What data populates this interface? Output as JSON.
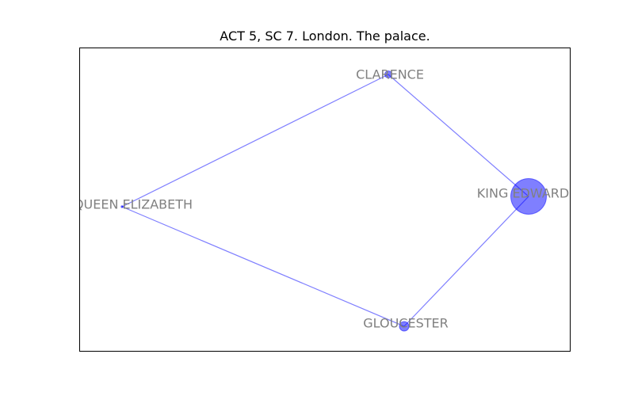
{
  "title": "ACT 5, SC 7. London. The palace.",
  "colors": {
    "node_fill": "#0000ff",
    "edge": "#0000ff",
    "label": "#808080",
    "frame": "#000000"
  },
  "graph": {
    "nodes": [
      {
        "id": "clarence",
        "label": "CLARENCE",
        "weight": 1
      },
      {
        "id": "queen_elizabeth",
        "label": "QUEEN ELIZABETH",
        "weight": 0
      },
      {
        "id": "king_edward",
        "label": "KING EDWARD",
        "weight": 20
      },
      {
        "id": "gloucester",
        "label": "GLOUCESTER",
        "weight": 2
      }
    ],
    "edges": [
      {
        "source": "clarence",
        "target": "king_edward"
      },
      {
        "source": "clarence",
        "target": "queen_elizabeth"
      },
      {
        "source": "queen_elizabeth",
        "target": "gloucester"
      },
      {
        "source": "gloucester",
        "target": "king_edward"
      }
    ]
  }
}
